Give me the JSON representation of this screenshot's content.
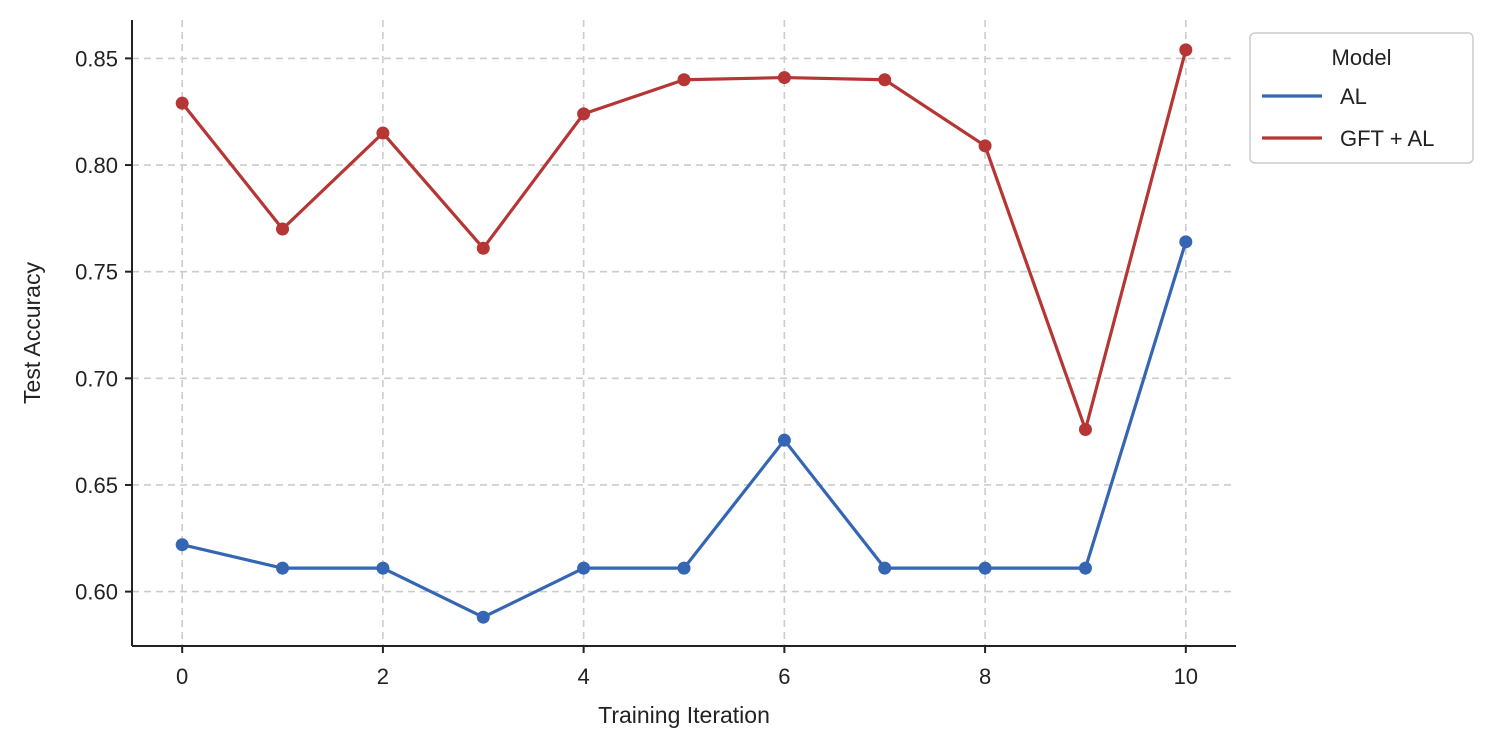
{
  "chart_data": {
    "type": "line",
    "title": "",
    "xlabel": "Training Iteration",
    "ylabel": "Test Accuracy",
    "x": [
      0,
      1,
      2,
      3,
      4,
      5,
      6,
      7,
      8,
      9,
      10
    ],
    "xlim": [
      -0.5,
      10.5
    ],
    "ylim": [
      0.5745,
      0.868
    ],
    "xticks": [
      0,
      2,
      4,
      6,
      8,
      10
    ],
    "yticks": [
      0.6,
      0.65,
      0.7,
      0.75,
      0.8,
      0.85
    ],
    "xtick_labels": [
      "0",
      "2",
      "4",
      "6",
      "8",
      "10"
    ],
    "ytick_labels": [
      "0.60",
      "0.65",
      "0.70",
      "0.75",
      "0.80",
      "0.85"
    ],
    "grid": true,
    "grid_style": "dashed",
    "legend": {
      "title": "Model",
      "placement": "outside-top-right"
    },
    "series": [
      {
        "name": "AL",
        "color": "#3566b3",
        "values": [
          0.622,
          0.611,
          0.611,
          0.588,
          0.611,
          0.611,
          0.671,
          0.611,
          0.611,
          0.611,
          0.764
        ]
      },
      {
        "name": "GFT + AL",
        "color": "#b53634",
        "values": [
          0.829,
          0.77,
          0.815,
          0.761,
          0.824,
          0.84,
          0.841,
          0.84,
          0.809,
          0.676,
          0.854
        ]
      }
    ]
  }
}
